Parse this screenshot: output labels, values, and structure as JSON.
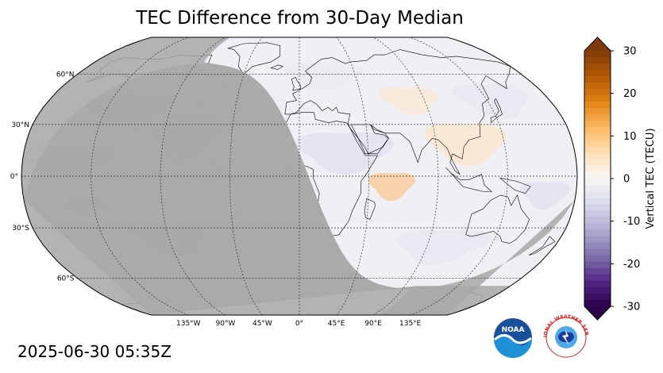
{
  "title": "TEC Difference from 30-Day Median",
  "timestamp": "2025-06-30 05:35Z",
  "map": {
    "projection": "robinson",
    "lat_labels": [
      "60°N",
      "30°N",
      "0°",
      "30°S",
      "60°S"
    ],
    "lat_values": [
      60,
      30,
      0,
      -30,
      -60
    ],
    "lon_labels": [
      "135°W",
      "90°W",
      "45°W",
      "0°",
      "45°E",
      "90°E",
      "135°E"
    ],
    "lon_values": [
      -135,
      -90,
      -45,
      0,
      45,
      90,
      135
    ],
    "night_shading_color": "#a8a8a8",
    "ocean_color": "#eeeef4"
  },
  "colorbar": {
    "label": "Vertical TEC (TECU)",
    "ticks": [
      "30",
      "20",
      "10",
      "0",
      "-10",
      "-20",
      "-30"
    ],
    "tick_values": [
      30,
      20,
      10,
      0,
      -10,
      -20,
      -30
    ],
    "range": [
      -30,
      30
    ],
    "colors_top": [
      "#7f3b08",
      "#b35806",
      "#e08214",
      "#fdb863",
      "#fee0b6",
      "#f7f7f7"
    ],
    "colors_bottom": [
      "#f7f7f7",
      "#d8daeb",
      "#b2abd2",
      "#8073ac",
      "#542788",
      "#2d004b"
    ]
  },
  "logos": {
    "noaa": "NOAA",
    "nws": "NATIONAL WEATHER SERVICE"
  }
}
